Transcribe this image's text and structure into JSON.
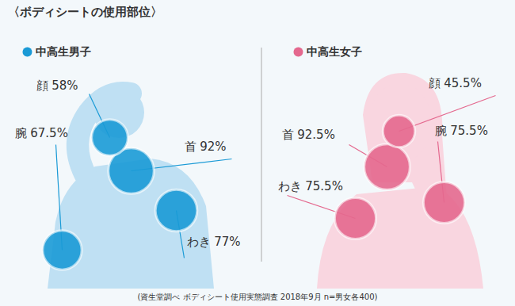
{
  "chart_data": {
    "type": "bubble",
    "title": "〈ボディシートの使用部位〉",
    "caption": "(資生堂調べ ボディシート使用実態調査 2018年9月 n=男女各400)",
    "categories": [
      "顔",
      "首",
      "腕",
      "わき"
    ],
    "series": [
      {
        "name": "中高生男子",
        "color": "#1a9ad6",
        "values": [
          58,
          92,
          67.5,
          77
        ],
        "value_labels": [
          "58%",
          "92%",
          "67.5%",
          "77%"
        ]
      },
      {
        "name": "中高生女子",
        "color": "#e4688e",
        "values": [
          45.5,
          92.5,
          75.5,
          75.5
        ],
        "value_labels": [
          "45.5%",
          "92.5%",
          "75.5%",
          "75.5%"
        ]
      }
    ],
    "data_labels": true,
    "tick_labels": false
  }
}
